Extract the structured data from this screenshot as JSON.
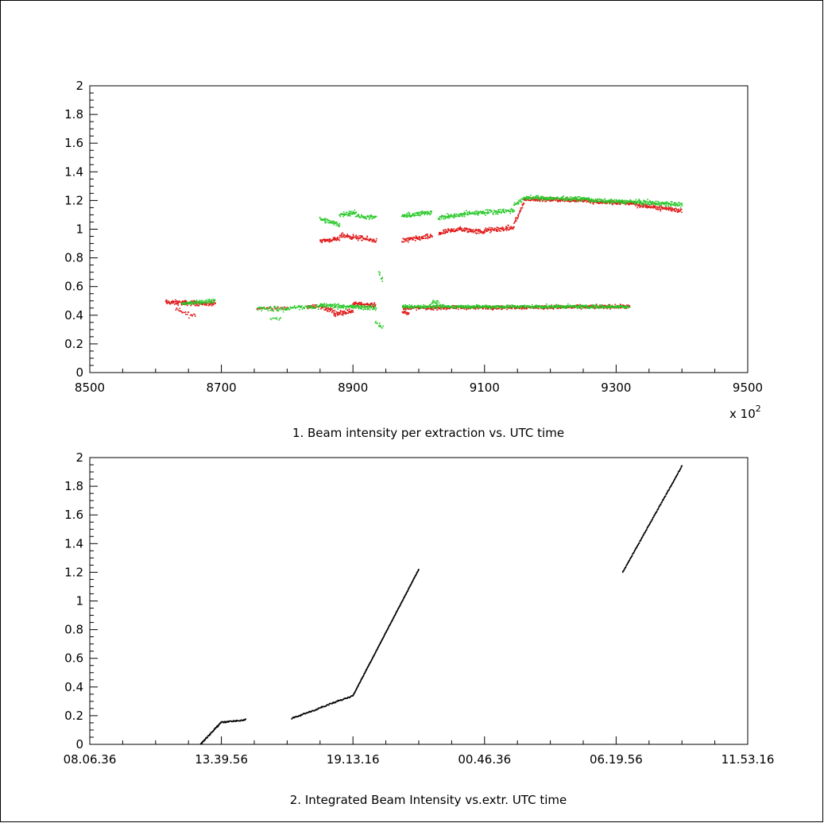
{
  "chart_data": [
    {
      "type": "scatter",
      "title": "1. Beam intensity  per extraction vs. UTC time",
      "xlabel": "",
      "ylabel": "",
      "x_multiplier_label": "x 10",
      "x_multiplier_exponent": "2",
      "xlim": [
        8500,
        9500
      ],
      "ylim": [
        0,
        2
      ],
      "x_ticks": [
        "8500",
        "8700",
        "8900",
        "9100",
        "9300",
        "9500"
      ],
      "y_ticks": [
        "0",
        "0.2",
        "0.4",
        "0.6",
        "0.8",
        "1",
        "1.2",
        "1.4",
        "1.6",
        "1.8",
        "2"
      ],
      "grid": false,
      "legend": "none",
      "series": [
        {
          "color": "#e01818",
          "segments": [
            {
              "x": [
                8615,
                8690
              ],
              "y": [
                0.49,
                0.48
              ],
              "noise": 0.025,
              "n": 150
            },
            {
              "x": [
                8630,
                8660
              ],
              "y": [
                0.44,
                0.39
              ],
              "noise": 0.03,
              "n": 25
            },
            {
              "x": [
                8755,
                8800
              ],
              "y": [
                0.45,
                0.45
              ],
              "noise": 0.02,
              "n": 40
            },
            {
              "x": [
                8830,
                8850
              ],
              "y": [
                0.46,
                0.46
              ],
              "noise": 0.02,
              "n": 25
            },
            {
              "x": [
                8850,
                8870
              ],
              "y": [
                0.46,
                0.43
              ],
              "noise": 0.025,
              "n": 40
            },
            {
              "x": [
                8870,
                8900
              ],
              "y": [
                0.41,
                0.43
              ],
              "noise": 0.025,
              "n": 60
            },
            {
              "x": [
                8900,
                8935
              ],
              "y": [
                0.48,
                0.47
              ],
              "noise": 0.02,
              "n": 70
            },
            {
              "x": [
                8850,
                8880
              ],
              "y": [
                0.92,
                0.93
              ],
              "noise": 0.02,
              "n": 60
            },
            {
              "x": [
                8880,
                8935
              ],
              "y": [
                0.96,
                0.92
              ],
              "noise": 0.025,
              "n": 100
            },
            {
              "x": [
                8975,
                9020
              ],
              "y": [
                0.92,
                0.95
              ],
              "noise": 0.025,
              "n": 90
            },
            {
              "x": [
                9030,
                9060
              ],
              "y": [
                0.97,
                1.0
              ],
              "noise": 0.025,
              "n": 60
            },
            {
              "x": [
                9060,
                9100
              ],
              "y": [
                1.0,
                0.98
              ],
              "noise": 0.025,
              "n": 80
            },
            {
              "x": [
                9100,
                9145
              ],
              "y": [
                0.99,
                1.01
              ],
              "noise": 0.025,
              "n": 90
            },
            {
              "x": [
                9145,
                9160
              ],
              "y": [
                1.04,
                1.18
              ],
              "noise": 0.02,
              "n": 30
            },
            {
              "x": [
                9160,
                9260
              ],
              "y": [
                1.21,
                1.2
              ],
              "noise": 0.02,
              "n": 200
            },
            {
              "x": [
                9260,
                9330
              ],
              "y": [
                1.19,
                1.18
              ],
              "noise": 0.02,
              "n": 140
            },
            {
              "x": [
                9330,
                9400
              ],
              "y": [
                1.17,
                1.13
              ],
              "noise": 0.025,
              "n": 140
            },
            {
              "x": [
                8975,
                9320
              ],
              "y": [
                0.45,
                0.46
              ],
              "noise": 0.02,
              "n": 600
            },
            {
              "x": [
                8975,
                8985
              ],
              "y": [
                0.42,
                0.41
              ],
              "noise": 0.02,
              "n": 20
            }
          ]
        },
        {
          "color": "#28c828",
          "segments": [
            {
              "x": [
                8640,
                8690
              ],
              "y": [
                0.48,
                0.5
              ],
              "noise": 0.02,
              "n": 90
            },
            {
              "x": [
                8755,
                8800
              ],
              "y": [
                0.45,
                0.44
              ],
              "noise": 0.025,
              "n": 50
            },
            {
              "x": [
                8775,
                8790
              ],
              "y": [
                0.38,
                0.37
              ],
              "noise": 0.02,
              "n": 10
            },
            {
              "x": [
                8800,
                8850
              ],
              "y": [
                0.45,
                0.46
              ],
              "noise": 0.025,
              "n": 60
            },
            {
              "x": [
                8850,
                8935
              ],
              "y": [
                0.47,
                0.45
              ],
              "noise": 0.025,
              "n": 160
            },
            {
              "x": [
                8935,
                8945
              ],
              "y": [
                0.35,
                0.32
              ],
              "noise": 0.03,
              "n": 15
            },
            {
              "x": [
                8940,
                8945
              ],
              "y": [
                0.7,
                0.64
              ],
              "noise": 0.03,
              "n": 10
            },
            {
              "x": [
                8850,
                8880
              ],
              "y": [
                1.07,
                1.03
              ],
              "noise": 0.025,
              "n": 60
            },
            {
              "x": [
                8880,
                8905
              ],
              "y": [
                1.1,
                1.12
              ],
              "noise": 0.025,
              "n": 50
            },
            {
              "x": [
                8905,
                8935
              ],
              "y": [
                1.09,
                1.08
              ],
              "noise": 0.02,
              "n": 50
            },
            {
              "x": [
                8975,
                9020
              ],
              "y": [
                1.09,
                1.12
              ],
              "noise": 0.025,
              "n": 90
            },
            {
              "x": [
                9030,
                9070
              ],
              "y": [
                1.08,
                1.1
              ],
              "noise": 0.025,
              "n": 80
            },
            {
              "x": [
                9070,
                9145
              ],
              "y": [
                1.11,
                1.13
              ],
              "noise": 0.025,
              "n": 130
            },
            {
              "x": [
                9145,
                9160
              ],
              "y": [
                1.17,
                1.21
              ],
              "noise": 0.02,
              "n": 25
            },
            {
              "x": [
                9160,
                9260
              ],
              "y": [
                1.22,
                1.21
              ],
              "noise": 0.02,
              "n": 200
            },
            {
              "x": [
                9260,
                9330
              ],
              "y": [
                1.2,
                1.19
              ],
              "noise": 0.02,
              "n": 140
            },
            {
              "x": [
                9330,
                9400
              ],
              "y": [
                1.19,
                1.17
              ],
              "noise": 0.025,
              "n": 140
            },
            {
              "x": [
                8975,
                9320
              ],
              "y": [
                0.46,
                0.46
              ],
              "noise": 0.018,
              "n": 650
            },
            {
              "x": [
                9020,
                9030
              ],
              "y": [
                0.49,
                0.49
              ],
              "noise": 0.02,
              "n": 15
            }
          ]
        }
      ]
    },
    {
      "type": "scatter",
      "title": "2. Integrated Beam Intensity vs.extr. UTC time",
      "xlabel": "",
      "ylabel": "",
      "x_ticks": [
        "08.06.36",
        "13.39.56",
        "19.13.16",
        "00.46.36",
        "06.19.56",
        "11.53.16"
      ],
      "y_ticks": [
        "0",
        "0.2",
        "0.4",
        "0.6",
        "0.8",
        "1",
        "1.2",
        "1.4",
        "1.6",
        "1.8",
        "2"
      ],
      "x_tick_seconds": [
        0,
        20000,
        40000,
        60000,
        80000,
        100000
      ],
      "xlim": [
        0,
        100000
      ],
      "ylim": [
        0,
        2
      ],
      "grid": false,
      "legend": "none",
      "series": [
        {
          "color": "#000000",
          "segments": [
            {
              "x": [
                16800,
                20000
              ],
              "y": [
                0.0,
                0.155
              ],
              "noise": 0.008,
              "n": 60
            },
            {
              "x": [
                20000,
                23700
              ],
              "y": [
                0.155,
                0.17
              ],
              "noise": 0.008,
              "n": 45
            },
            {
              "x": [
                30700,
                40000
              ],
              "y": [
                0.18,
                0.34
              ],
              "noise": 0.008,
              "n": 100
            },
            {
              "x": [
                40000,
                50000
              ],
              "y": [
                0.34,
                1.22
              ],
              "noise": 0.004,
              "n": 200
            },
            {
              "x": [
                81000,
                90000
              ],
              "y": [
                1.2,
                1.94
              ],
              "noise": 0.006,
              "n": 150
            }
          ]
        }
      ]
    }
  ]
}
